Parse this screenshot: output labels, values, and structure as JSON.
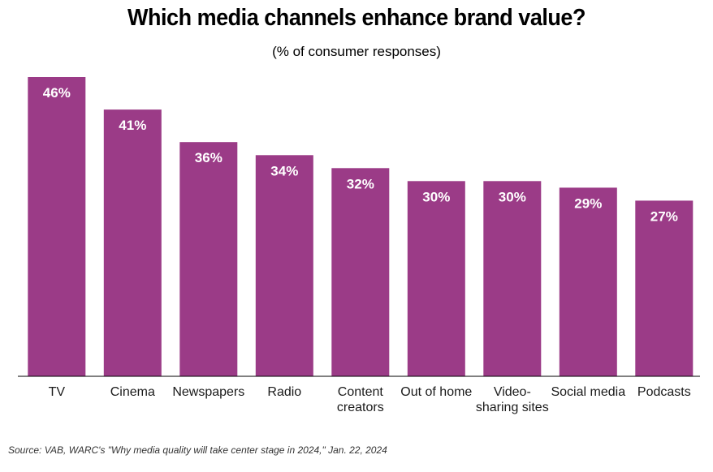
{
  "chart_data": {
    "type": "bar",
    "title": "Which media channels enhance brand value?",
    "subtitle": "(% of consumer responses)",
    "categories": [
      [
        "TV"
      ],
      [
        "Cinema"
      ],
      [
        "Newspapers"
      ],
      [
        "Radio"
      ],
      [
        "Content",
        "creators"
      ],
      [
        "Out of home"
      ],
      [
        "Video-",
        "sharing sites"
      ],
      [
        "Social media"
      ],
      [
        "Podcasts"
      ]
    ],
    "values": [
      46,
      41,
      36,
      34,
      32,
      30,
      30,
      29,
      27
    ],
    "value_labels": [
      "46%",
      "41%",
      "36%",
      "34%",
      "32%",
      "30%",
      "30%",
      "29%",
      "27%"
    ],
    "ylim": [
      0,
      46
    ],
    "xlabel": "",
    "ylabel": "",
    "grid": false,
    "bar_color": "#9b3b87",
    "source": "Source: VAB, WARC's \"Why media quality will take center stage in 2024,\" Jan. 22, 2024"
  }
}
